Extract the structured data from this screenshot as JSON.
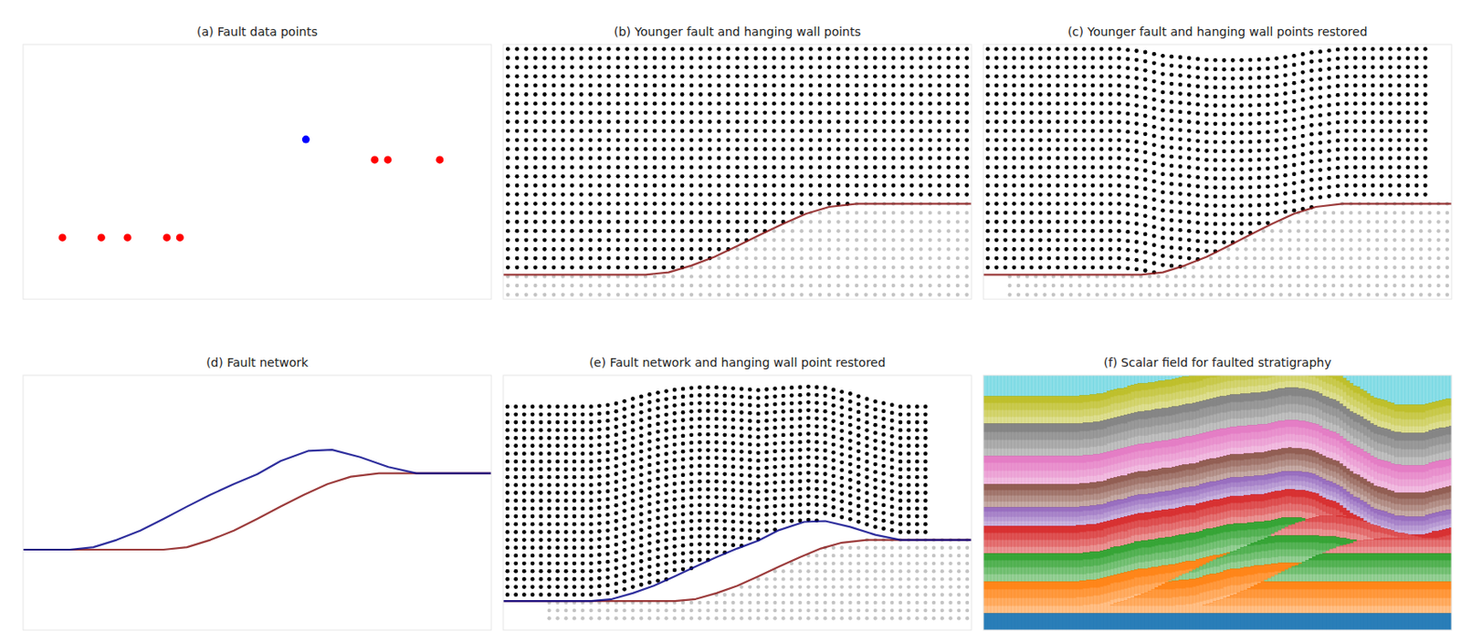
{
  "chart_data": [
    {
      "title": "(a) Fault data points",
      "type": "scatter",
      "xlim": [
        0,
        100
      ],
      "ylim": [
        0,
        55
      ],
      "tick_labels": false,
      "series": [
        {
          "color": "#ff0000",
          "x": [
            8.4,
            16.7,
            22.3,
            30.7,
            33.5,
            75.1,
            77.9,
            89.0
          ],
          "values": [
            13.3,
            13.3,
            13.3,
            13.3,
            13.3,
            30.1,
            30.1,
            30.1
          ]
        },
        {
          "color": "#0000ff",
          "x": [
            60.4
          ],
          "values": [
            34.5
          ]
        }
      ]
    },
    {
      "title": "(b) Younger fault and hanging wall points",
      "type": "points",
      "xlim": [
        -1,
        101
      ],
      "ylim": [
        -1,
        55
      ],
      "tick_labels": false,
      "colors": [
        "#000000",
        "#c4c4c4"
      ],
      "slip": 0,
      "x": [
        0,
        2,
        4,
        6,
        8,
        10,
        12,
        14,
        16,
        18,
        20,
        22,
        24,
        26,
        28,
        30,
        32,
        34,
        36,
        38,
        40,
        42,
        44,
        46,
        48,
        50,
        52,
        54,
        56,
        58,
        60,
        62,
        64,
        66,
        68,
        70,
        72,
        74,
        76,
        78,
        80,
        82,
        84,
        86,
        88,
        90,
        92,
        94,
        96,
        98,
        100
      ],
      "y": [
        0,
        2,
        4,
        6,
        8,
        10,
        12,
        14,
        16,
        18,
        20,
        22,
        24,
        26,
        28,
        30,
        32,
        34,
        36,
        38,
        40,
        42,
        44,
        46,
        48,
        50,
        52,
        54
      ],
      "faults": [
        {
          "color": "#8b1a1a",
          "x": [
            -12,
            30,
            35,
            40,
            45,
            50,
            55,
            60,
            65,
            70,
            76,
            102
          ],
          "y": [
            4.4,
            4.4,
            4.9,
            6.4,
            8.3,
            10.7,
            13.2,
            15.6,
            17.8,
            19.3,
            20,
            20
          ]
        }
      ]
    },
    {
      "title": "(c) Younger fault and hanging wall points restored",
      "type": "points",
      "xlim": [
        -6,
        101
      ],
      "ylim": [
        -1,
        55
      ],
      "tick_labels": false,
      "colors": [
        "#000000",
        "#c4c4c4"
      ],
      "slip": -5,
      "x": [
        0,
        2,
        4,
        6,
        8,
        10,
        12,
        14,
        16,
        18,
        20,
        22,
        24,
        26,
        28,
        30,
        32,
        34,
        36,
        38,
        40,
        42,
        44,
        46,
        48,
        50,
        52,
        54,
        56,
        58,
        60,
        62,
        64,
        66,
        68,
        70,
        72,
        74,
        76,
        78,
        80,
        82,
        84,
        86,
        88,
        90,
        92,
        94,
        96,
        98,
        100
      ],
      "y": [
        0,
        2,
        4,
        6,
        8,
        10,
        12,
        14,
        16,
        18,
        20,
        22,
        24,
        26,
        28,
        30,
        32,
        34,
        36,
        38,
        40,
        42,
        44,
        46,
        48,
        50,
        52,
        54
      ],
      "faults": [
        {
          "color": "#8b1a1a",
          "x": [
            -12,
            30,
            35,
            40,
            45,
            50,
            55,
            60,
            65,
            70,
            76,
            102
          ],
          "y": [
            4.4,
            4.4,
            4.9,
            6.4,
            8.3,
            10.7,
            13.2,
            15.6,
            17.8,
            19.3,
            20,
            20
          ]
        }
      ]
    },
    {
      "title": "(d) Fault network",
      "type": "line",
      "xlim": [
        0,
        100
      ],
      "ylim": [
        -12,
        40
      ],
      "tick_labels": false,
      "faults": [
        {
          "color": "#8b1a1a",
          "x": [
            -12,
            30,
            35,
            40,
            45,
            50,
            55,
            60,
            65,
            70,
            76,
            102
          ],
          "y": [
            4.4,
            4.4,
            4.9,
            6.4,
            8.3,
            10.7,
            13.2,
            15.6,
            17.8,
            19.3,
            20,
            20
          ]
        },
        {
          "color": "#0a0a8c",
          "x": [
            -12,
            10,
            15,
            20,
            25,
            30,
            35,
            40,
            45,
            50,
            55,
            61,
            66,
            72,
            78,
            84,
            102
          ],
          "y": [
            4.4,
            4.4,
            4.9,
            6.4,
            8.3,
            10.7,
            13.2,
            15.6,
            17.8,
            19.8,
            22.5,
            24.6,
            24.8,
            23.3,
            21.3,
            20,
            20
          ]
        }
      ]
    },
    {
      "title": "(e) Fault network and hanging wall point restored",
      "type": "points",
      "xlim": [
        -11,
        101
      ],
      "ylim": [
        -3,
        62
      ],
      "tick_labels": false,
      "colors": [
        "#000000",
        "#c4c4c4"
      ],
      "slip": -10,
      "x": [
        0,
        2,
        4,
        6,
        8,
        10,
        12,
        14,
        16,
        18,
        20,
        22,
        24,
        26,
        28,
        30,
        32,
        34,
        36,
        38,
        40,
        42,
        44,
        46,
        48,
        50,
        52,
        54,
        56,
        58,
        60,
        62,
        64,
        66,
        68,
        70,
        72,
        74,
        76,
        78,
        80,
        82,
        84,
        86,
        88,
        90,
        92,
        94,
        96,
        98,
        100
      ],
      "y": [
        0,
        2,
        4,
        6,
        8,
        10,
        12,
        14,
        16,
        18,
        20,
        22,
        24,
        26,
        28,
        30,
        32,
        34,
        36,
        38,
        40,
        42,
        44,
        46,
        48,
        50,
        52,
        54
      ],
      "faults": [
        {
          "color": "#8b1a1a",
          "x": [
            -12,
            30,
            35,
            40,
            45,
            50,
            55,
            60,
            65,
            70,
            76,
            102
          ],
          "y": [
            4.4,
            4.4,
            4.9,
            6.4,
            8.3,
            10.7,
            13.2,
            15.6,
            17.8,
            19.3,
            20,
            20
          ]
        },
        {
          "color": "#0a0a8c",
          "x": [
            -12,
            10,
            15,
            20,
            25,
            30,
            35,
            40,
            45,
            50,
            55,
            61,
            66,
            72,
            78,
            84,
            102
          ],
          "y": [
            4.4,
            4.4,
            4.9,
            6.4,
            8.3,
            10.7,
            13.2,
            15.6,
            17.8,
            19.8,
            22.5,
            24.6,
            24.8,
            23.3,
            21.3,
            20,
            20
          ]
        }
      ]
    },
    {
      "title": "(f) Scalar field for faulted stratigraphy",
      "type": "field",
      "xlim": [
        -10,
        90
      ],
      "ylim": [
        0,
        55
      ],
      "tick_labels": false,
      "levels": [
        -20,
        3.6,
        10.6,
        16.6,
        22.6,
        26.6,
        31.6,
        37.6,
        44.6,
        50.6,
        80
      ],
      "colors": [
        "#1f77b4",
        "#ff7f0e",
        "#2ca02c",
        "#d62728",
        "#9467bd",
        "#8c564b",
        "#e377c2",
        "#7f7f7f",
        "#bcbd22",
        "#17becf"
      ],
      "faults": [
        {
          "slip": -8,
          "x": [
            -12,
            30,
            35,
            40,
            45,
            50,
            55,
            60,
            65,
            70,
            76,
            102
          ],
          "y": [
            4.4,
            4.4,
            4.9,
            6.4,
            8.3,
            10.7,
            13.2,
            15.6,
            17.8,
            19.3,
            20,
            20
          ]
        },
        {
          "slip": -8,
          "x": [
            -12,
            10,
            15,
            20,
            25,
            30,
            35,
            40,
            45,
            50,
            55,
            61,
            66,
            72,
            78,
            84,
            102
          ],
          "y": [
            4.4,
            4.4,
            4.9,
            6.4,
            8.3,
            10.7,
            13.2,
            15.6,
            17.8,
            19.8,
            22.5,
            24.6,
            24.8,
            23.3,
            21.3,
            20,
            20
          ]
        }
      ]
    }
  ]
}
